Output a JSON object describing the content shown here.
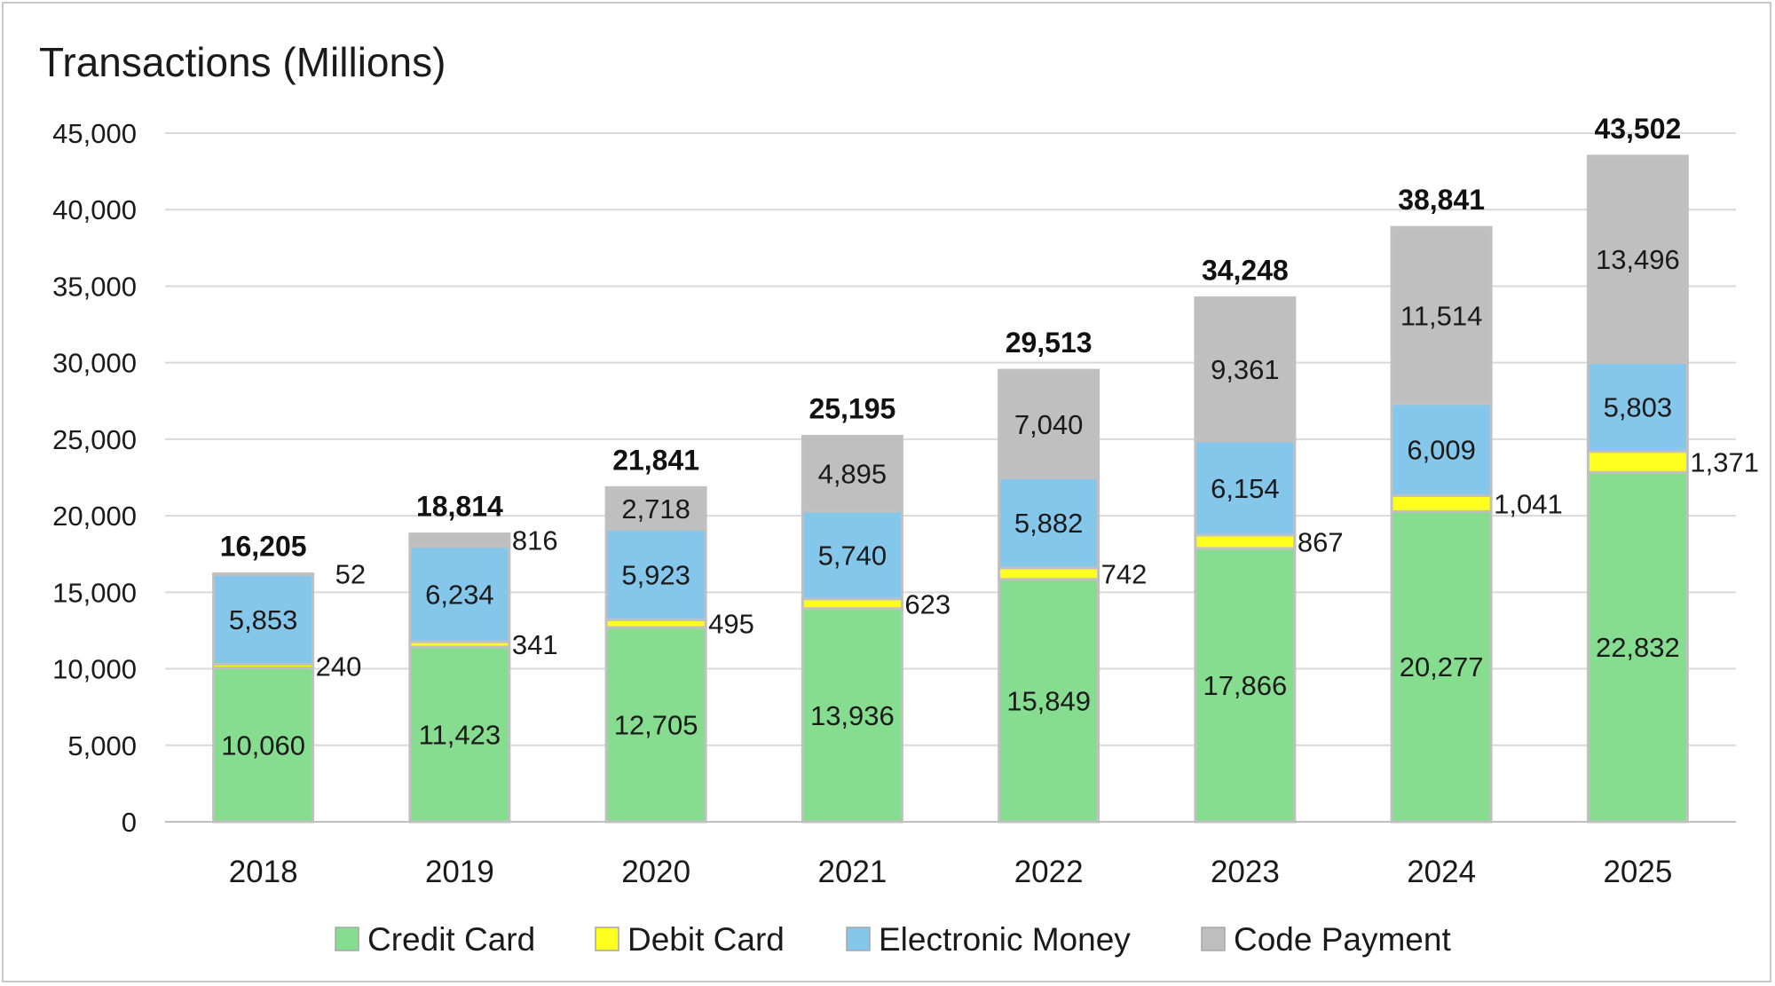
{
  "chart_data": {
    "type": "bar",
    "stacked": true,
    "title": "Transactions (Millions)",
    "categories": [
      "2018",
      "2019",
      "2020",
      "2021",
      "2022",
      "2023",
      "2024",
      "2025"
    ],
    "series": [
      {
        "name": "Credit Card",
        "color": "#86dc8f",
        "values": [
          10060,
          11423,
          12705,
          13936,
          15849,
          17866,
          20277,
          22832
        ]
      },
      {
        "name": "Debit Card",
        "color": "#ffff1f",
        "values": [
          240,
          341,
          495,
          623,
          742,
          867,
          1041,
          1371
        ]
      },
      {
        "name": "Electronic Money",
        "color": "#85c7ea",
        "values": [
          5853,
          6234,
          5923,
          5740,
          5882,
          6154,
          6009,
          5803
        ]
      },
      {
        "name": "Code Payment",
        "color": "#bfbfbf",
        "values": [
          52,
          816,
          2718,
          4895,
          7040,
          9361,
          11514,
          13496
        ]
      }
    ],
    "totals": [
      16205,
      18814,
      21841,
      25195,
      29513,
      34248,
      38841,
      43502
    ],
    "ylim": [
      0,
      45000
    ],
    "yticks": [
      0,
      5000,
      10000,
      15000,
      20000,
      25000,
      30000,
      35000,
      40000,
      45000
    ],
    "grid": true,
    "legend": "bottom",
    "xlabel": "",
    "ylabel": ""
  }
}
